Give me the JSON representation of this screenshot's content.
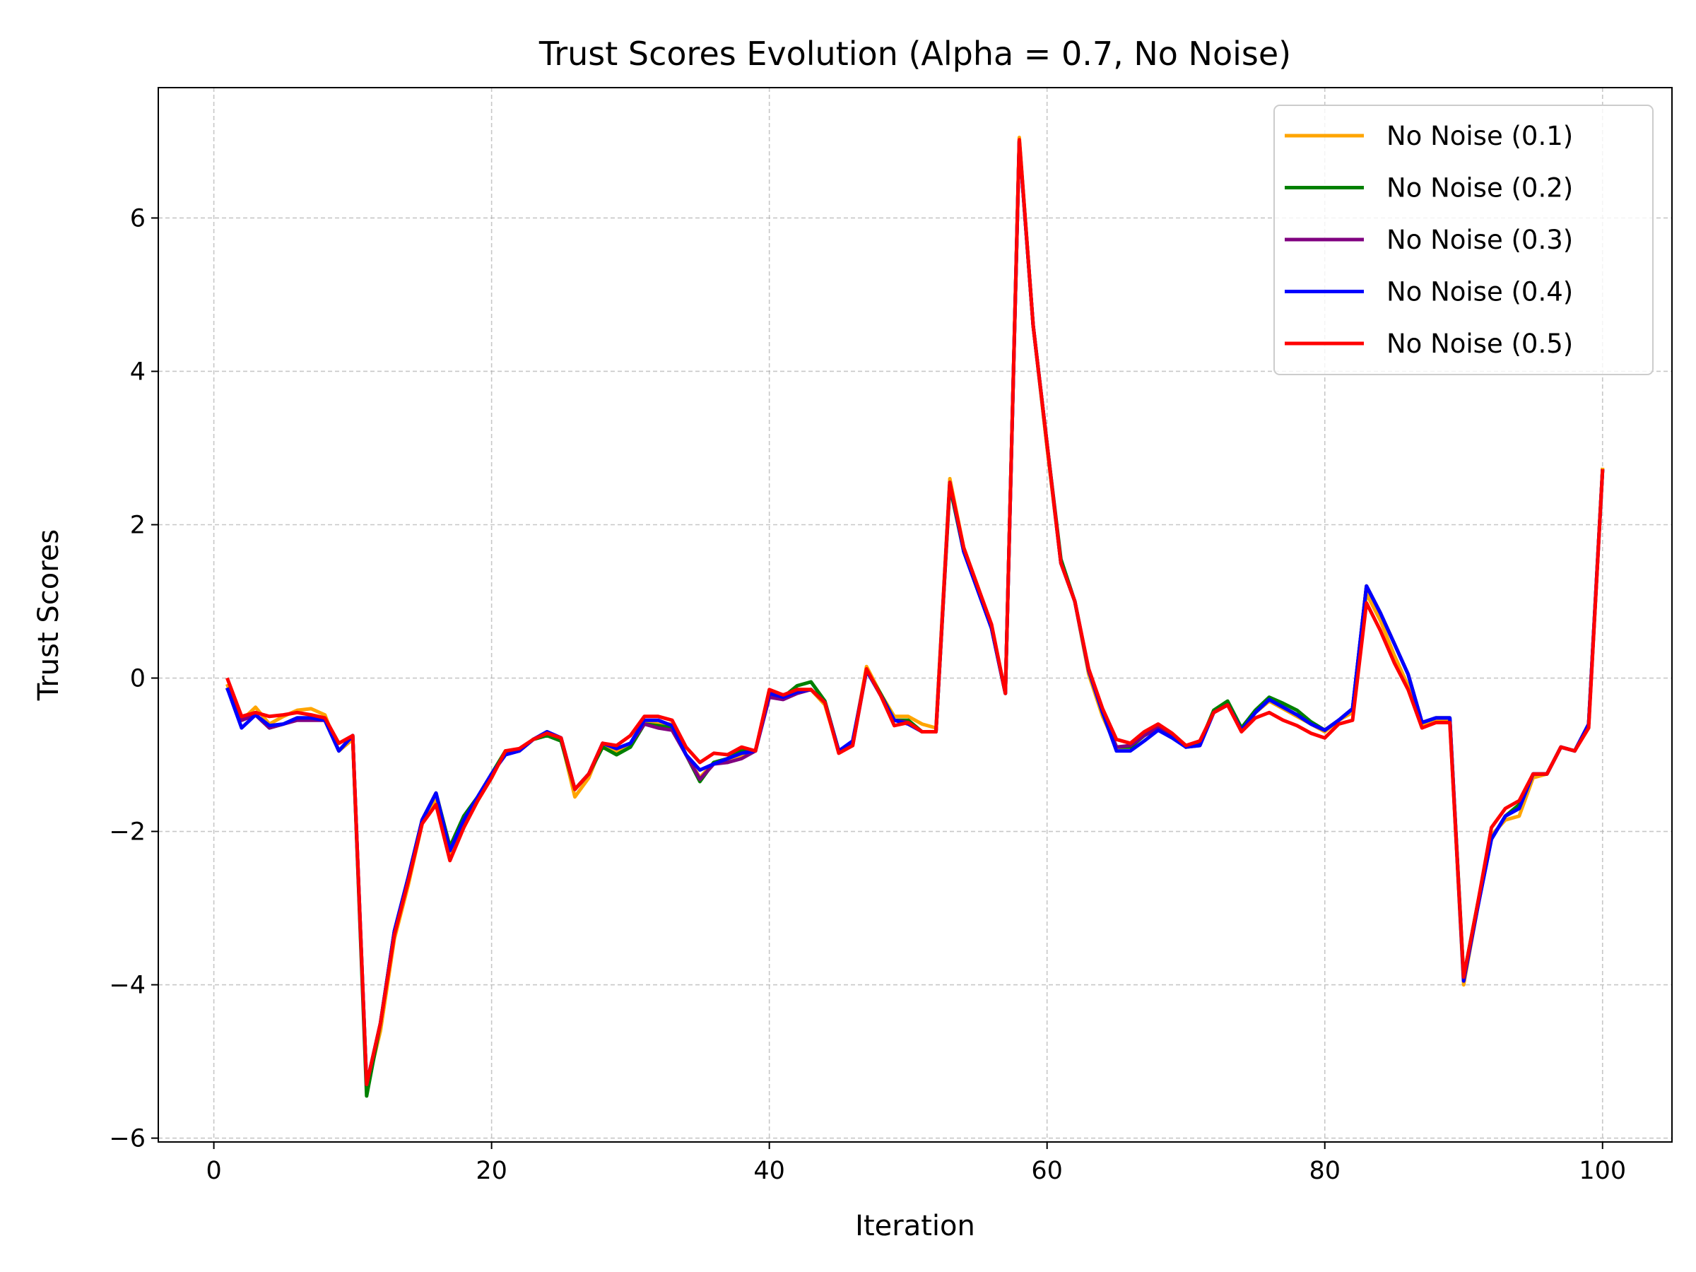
{
  "chart_data": {
    "type": "line",
    "title": "Trust Scores Evolution (Alpha = 0.7, No Noise)",
    "xlabel": "Iteration",
    "ylabel": "Trust Scores",
    "xlim": [
      -4,
      105
    ],
    "ylim": [
      -6.05,
      7.7
    ],
    "xticks": [
      0,
      20,
      40,
      60,
      80,
      100
    ],
    "yticks": [
      -6,
      -4,
      -2,
      0,
      2,
      4,
      6
    ],
    "xtick_labels": [
      "0",
      "20",
      "40",
      "60",
      "80",
      "100"
    ],
    "ytick_labels": [
      "−6",
      "−4",
      "−2",
      "0",
      "2",
      "4",
      "6"
    ],
    "grid": true,
    "legend_position": "top-right",
    "x": [
      1,
      2,
      3,
      4,
      5,
      6,
      7,
      8,
      9,
      10,
      11,
      12,
      13,
      14,
      15,
      16,
      17,
      18,
      19,
      20,
      21,
      22,
      23,
      24,
      25,
      26,
      27,
      28,
      29,
      30,
      31,
      32,
      33,
      34,
      35,
      36,
      37,
      38,
      39,
      40,
      41,
      42,
      43,
      44,
      45,
      46,
      47,
      48,
      49,
      50,
      51,
      52,
      53,
      54,
      55,
      56,
      57,
      58,
      59,
      60,
      61,
      62,
      63,
      64,
      65,
      66,
      67,
      68,
      69,
      70,
      71,
      72,
      73,
      74,
      75,
      76,
      77,
      78,
      79,
      80,
      81,
      82,
      83,
      84,
      85,
      86,
      87,
      88,
      89,
      90,
      91,
      92,
      93,
      94,
      95,
      96,
      97,
      98,
      99,
      100
    ],
    "series": [
      {
        "name": "No Noise (0.1)",
        "color": "#FFA500",
        "values": [
          -0.1,
          -0.55,
          -0.38,
          -0.6,
          -0.5,
          -0.42,
          -0.4,
          -0.48,
          -0.95,
          -0.8,
          -5.35,
          -4.6,
          -3.4,
          -2.7,
          -1.9,
          -1.6,
          -2.3,
          -1.9,
          -1.6,
          -1.3,
          -0.95,
          -0.95,
          -0.8,
          -0.7,
          -0.8,
          -1.55,
          -1.3,
          -0.85,
          -0.95,
          -0.85,
          -0.55,
          -0.6,
          -0.6,
          -1.0,
          -1.3,
          -1.1,
          -1.1,
          -1.0,
          -0.95,
          -0.2,
          -0.25,
          -0.15,
          -0.15,
          -0.35,
          -0.95,
          -0.85,
          0.15,
          -0.2,
          -0.5,
          -0.5,
          -0.6,
          -0.65,
          2.6,
          1.7,
          1.2,
          0.65,
          -0.2,
          7.05,
          4.6,
          3.0,
          1.5,
          1.0,
          0.05,
          -0.5,
          -0.9,
          -0.9,
          -0.75,
          -0.65,
          -0.75,
          -0.9,
          -0.85,
          -0.45,
          -0.35,
          -0.65,
          -0.45,
          -0.3,
          -0.4,
          -0.5,
          -0.6,
          -0.7,
          -0.55,
          -0.45,
          1.1,
          0.75,
          0.3,
          -0.1,
          -0.6,
          -0.55,
          -0.55,
          -4.0,
          -3.0,
          -2.05,
          -1.85,
          -1.8,
          -1.3,
          -1.25,
          -0.9,
          -0.95,
          -0.6,
          2.72
        ]
      },
      {
        "name": "No Noise (0.2)",
        "color": "#008000",
        "values": [
          -0.15,
          -0.55,
          -0.48,
          -0.65,
          -0.6,
          -0.52,
          -0.52,
          -0.55,
          -0.95,
          -0.75,
          -5.45,
          -4.5,
          -3.3,
          -2.6,
          -1.85,
          -1.5,
          -2.2,
          -1.8,
          -1.55,
          -1.25,
          -0.95,
          -0.95,
          -0.8,
          -0.75,
          -0.82,
          -1.45,
          -1.25,
          -0.9,
          -1.0,
          -0.9,
          -0.6,
          -0.62,
          -0.65,
          -1.0,
          -1.35,
          -1.1,
          -1.05,
          -0.95,
          -0.95,
          -0.2,
          -0.25,
          -0.1,
          -0.05,
          -0.3,
          -0.95,
          -0.85,
          0.1,
          -0.2,
          -0.55,
          -0.55,
          -0.7,
          -0.7,
          2.5,
          1.65,
          1.15,
          0.65,
          -0.2,
          7.0,
          4.6,
          3.05,
          1.55,
          1.0,
          0.1,
          -0.45,
          -0.9,
          -0.9,
          -0.75,
          -0.65,
          -0.75,
          -0.9,
          -0.85,
          -0.42,
          -0.3,
          -0.65,
          -0.42,
          -0.25,
          -0.33,
          -0.42,
          -0.57,
          -0.68,
          -0.55,
          -0.4,
          1.2,
          0.85,
          0.45,
          0.05,
          -0.58,
          -0.52,
          -0.52,
          -3.9,
          -2.95,
          -2.1,
          -1.8,
          -1.65,
          -1.25,
          -1.25,
          -0.9,
          -0.95,
          -0.6,
          2.7
        ]
      },
      {
        "name": "No Noise (0.3)",
        "color": "#800080",
        "values": [
          -0.15,
          -0.55,
          -0.48,
          -0.65,
          -0.6,
          -0.55,
          -0.55,
          -0.55,
          -0.95,
          -0.75,
          -5.3,
          -4.5,
          -3.3,
          -2.6,
          -1.85,
          -1.5,
          -2.25,
          -1.85,
          -1.55,
          -1.25,
          -1.0,
          -0.95,
          -0.8,
          -0.7,
          -0.78,
          -1.45,
          -1.25,
          -0.85,
          -0.92,
          -0.85,
          -0.6,
          -0.65,
          -0.68,
          -1.0,
          -1.32,
          -1.12,
          -1.1,
          -1.05,
          -0.95,
          -0.25,
          -0.28,
          -0.2,
          -0.15,
          -0.32,
          -0.95,
          -0.88,
          0.1,
          -0.22,
          -0.55,
          -0.58,
          -0.7,
          -0.7,
          2.55,
          1.65,
          1.15,
          0.65,
          -0.2,
          7.0,
          4.6,
          3.05,
          1.5,
          1.0,
          0.1,
          -0.45,
          -0.9,
          -0.88,
          -0.75,
          -0.65,
          -0.75,
          -0.9,
          -0.88,
          -0.45,
          -0.35,
          -0.68,
          -0.45,
          -0.28,
          -0.38,
          -0.48,
          -0.6,
          -0.68,
          -0.55,
          -0.4,
          1.2,
          0.85,
          0.45,
          0.05,
          -0.58,
          -0.52,
          -0.52,
          -3.95,
          -3.0,
          -2.1,
          -1.8,
          -1.7,
          -1.25,
          -1.25,
          -0.9,
          -0.95,
          -0.6,
          2.7
        ]
      },
      {
        "name": "No Noise (0.4)",
        "color": "#0000FF",
        "values": [
          -0.15,
          -0.65,
          -0.48,
          -0.62,
          -0.6,
          -0.52,
          -0.52,
          -0.55,
          -0.95,
          -0.75,
          -5.3,
          -4.5,
          -3.3,
          -2.6,
          -1.85,
          -1.5,
          -2.25,
          -1.85,
          -1.55,
          -1.25,
          -1.0,
          -0.95,
          -0.8,
          -0.7,
          -0.78,
          -1.45,
          -1.25,
          -0.85,
          -0.92,
          -0.85,
          -0.55,
          -0.55,
          -0.62,
          -1.0,
          -1.2,
          -1.12,
          -1.05,
          -0.98,
          -0.95,
          -0.2,
          -0.25,
          -0.18,
          -0.15,
          -0.32,
          -0.95,
          -0.82,
          0.1,
          -0.22,
          -0.55,
          -0.6,
          -0.7,
          -0.7,
          2.55,
          1.65,
          1.15,
          0.65,
          -0.2,
          7.0,
          4.6,
          3.05,
          1.5,
          1.0,
          0.1,
          -0.45,
          -0.95,
          -0.95,
          -0.82,
          -0.68,
          -0.78,
          -0.9,
          -0.88,
          -0.45,
          -0.35,
          -0.68,
          -0.45,
          -0.28,
          -0.38,
          -0.48,
          -0.6,
          -0.68,
          -0.55,
          -0.4,
          1.2,
          0.85,
          0.45,
          0.05,
          -0.58,
          -0.52,
          -0.52,
          -3.95,
          -3.0,
          -2.1,
          -1.8,
          -1.7,
          -1.25,
          -1.25,
          -0.9,
          -0.95,
          -0.6,
          2.7
        ]
      },
      {
        "name": "No Noise (0.5)",
        "color": "#FF0000",
        "values": [
          -0.02,
          -0.5,
          -0.45,
          -0.5,
          -0.48,
          -0.45,
          -0.48,
          -0.52,
          -0.85,
          -0.75,
          -5.3,
          -4.5,
          -3.35,
          -2.65,
          -1.9,
          -1.65,
          -2.38,
          -1.95,
          -1.6,
          -1.3,
          -0.95,
          -0.92,
          -0.8,
          -0.72,
          -0.78,
          -1.45,
          -1.25,
          -0.85,
          -0.88,
          -0.75,
          -0.5,
          -0.5,
          -0.55,
          -0.9,
          -1.1,
          -0.98,
          -1.0,
          -0.9,
          -0.95,
          -0.15,
          -0.22,
          -0.15,
          -0.15,
          -0.32,
          -0.98,
          -0.88,
          0.12,
          -0.22,
          -0.62,
          -0.58,
          -0.7,
          -0.7,
          2.55,
          1.7,
          1.2,
          0.7,
          -0.2,
          7.02,
          4.6,
          3.05,
          1.5,
          1.0,
          0.12,
          -0.4,
          -0.8,
          -0.85,
          -0.7,
          -0.6,
          -0.72,
          -0.88,
          -0.82,
          -0.45,
          -0.35,
          -0.7,
          -0.52,
          -0.45,
          -0.55,
          -0.62,
          -0.72,
          -0.78,
          -0.6,
          -0.55,
          0.98,
          0.62,
          0.2,
          -0.15,
          -0.65,
          -0.58,
          -0.58,
          -3.9,
          -2.95,
          -1.95,
          -1.7,
          -1.6,
          -1.25,
          -1.25,
          -0.9,
          -0.95,
          -0.65,
          2.7
        ]
      }
    ]
  }
}
